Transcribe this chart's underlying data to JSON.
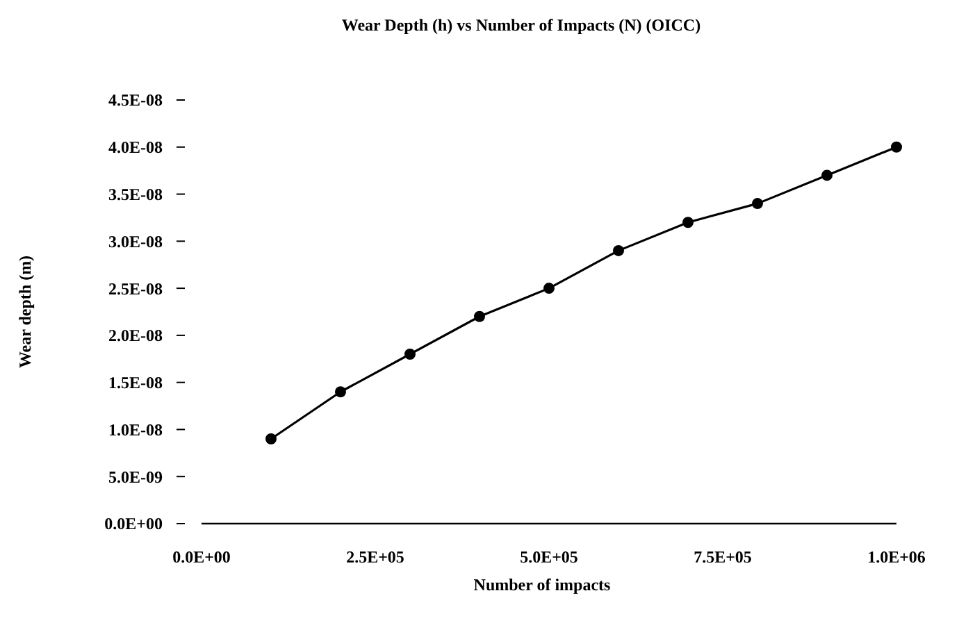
{
  "chart_data": {
    "type": "line",
    "title": "Wear Depth (h) vs Number of Impacts (N) (OICC)",
    "xlabel": "Number of impacts",
    "ylabel": "Wear depth (m)",
    "x": [
      100000,
      200000,
      300000,
      400000,
      500000,
      600000,
      700000,
      800000,
      900000,
      1000000
    ],
    "series": [
      {
        "color": "#000000",
        "values": [
          9e-09,
          1.4e-08,
          1.8e-08,
          2.2e-08,
          2.5e-08,
          2.9e-08,
          3.2e-08,
          3.4e-08,
          3.7e-08,
          4e-08
        ]
      }
    ],
    "marker": "circle",
    "line_style": "solid",
    "grid": false,
    "xlim": [
      0,
      1000000
    ],
    "xticks": [
      {
        "value": 0,
        "label": "0.0E+00"
      },
      {
        "value": 250000,
        "label": "2.5E+05"
      },
      {
        "value": 500000,
        "label": "5.0E+05"
      },
      {
        "value": 750000,
        "label": "7.5E+05"
      },
      {
        "value": 1000000,
        "label": "1.0E+06"
      }
    ],
    "ylim": [
      0,
      4.5e-08
    ],
    "yticks": [
      {
        "value": 0,
        "label": "0.0E+00"
      },
      {
        "value": 5e-09,
        "label": "5.0E-09"
      },
      {
        "value": 1e-08,
        "label": "1.0E-08"
      },
      {
        "value": 1.5e-08,
        "label": "1.5E-08"
      },
      {
        "value": 2e-08,
        "label": "2.0E-08"
      },
      {
        "value": 2.5e-08,
        "label": "2.5E-08"
      },
      {
        "value": 3e-08,
        "label": "3.0E-08"
      },
      {
        "value": 3.5e-08,
        "label": "3.5E-08"
      },
      {
        "value": 4e-08,
        "label": "4.0E-08"
      },
      {
        "value": 4.5e-08,
        "label": "4.5E-08"
      }
    ]
  }
}
